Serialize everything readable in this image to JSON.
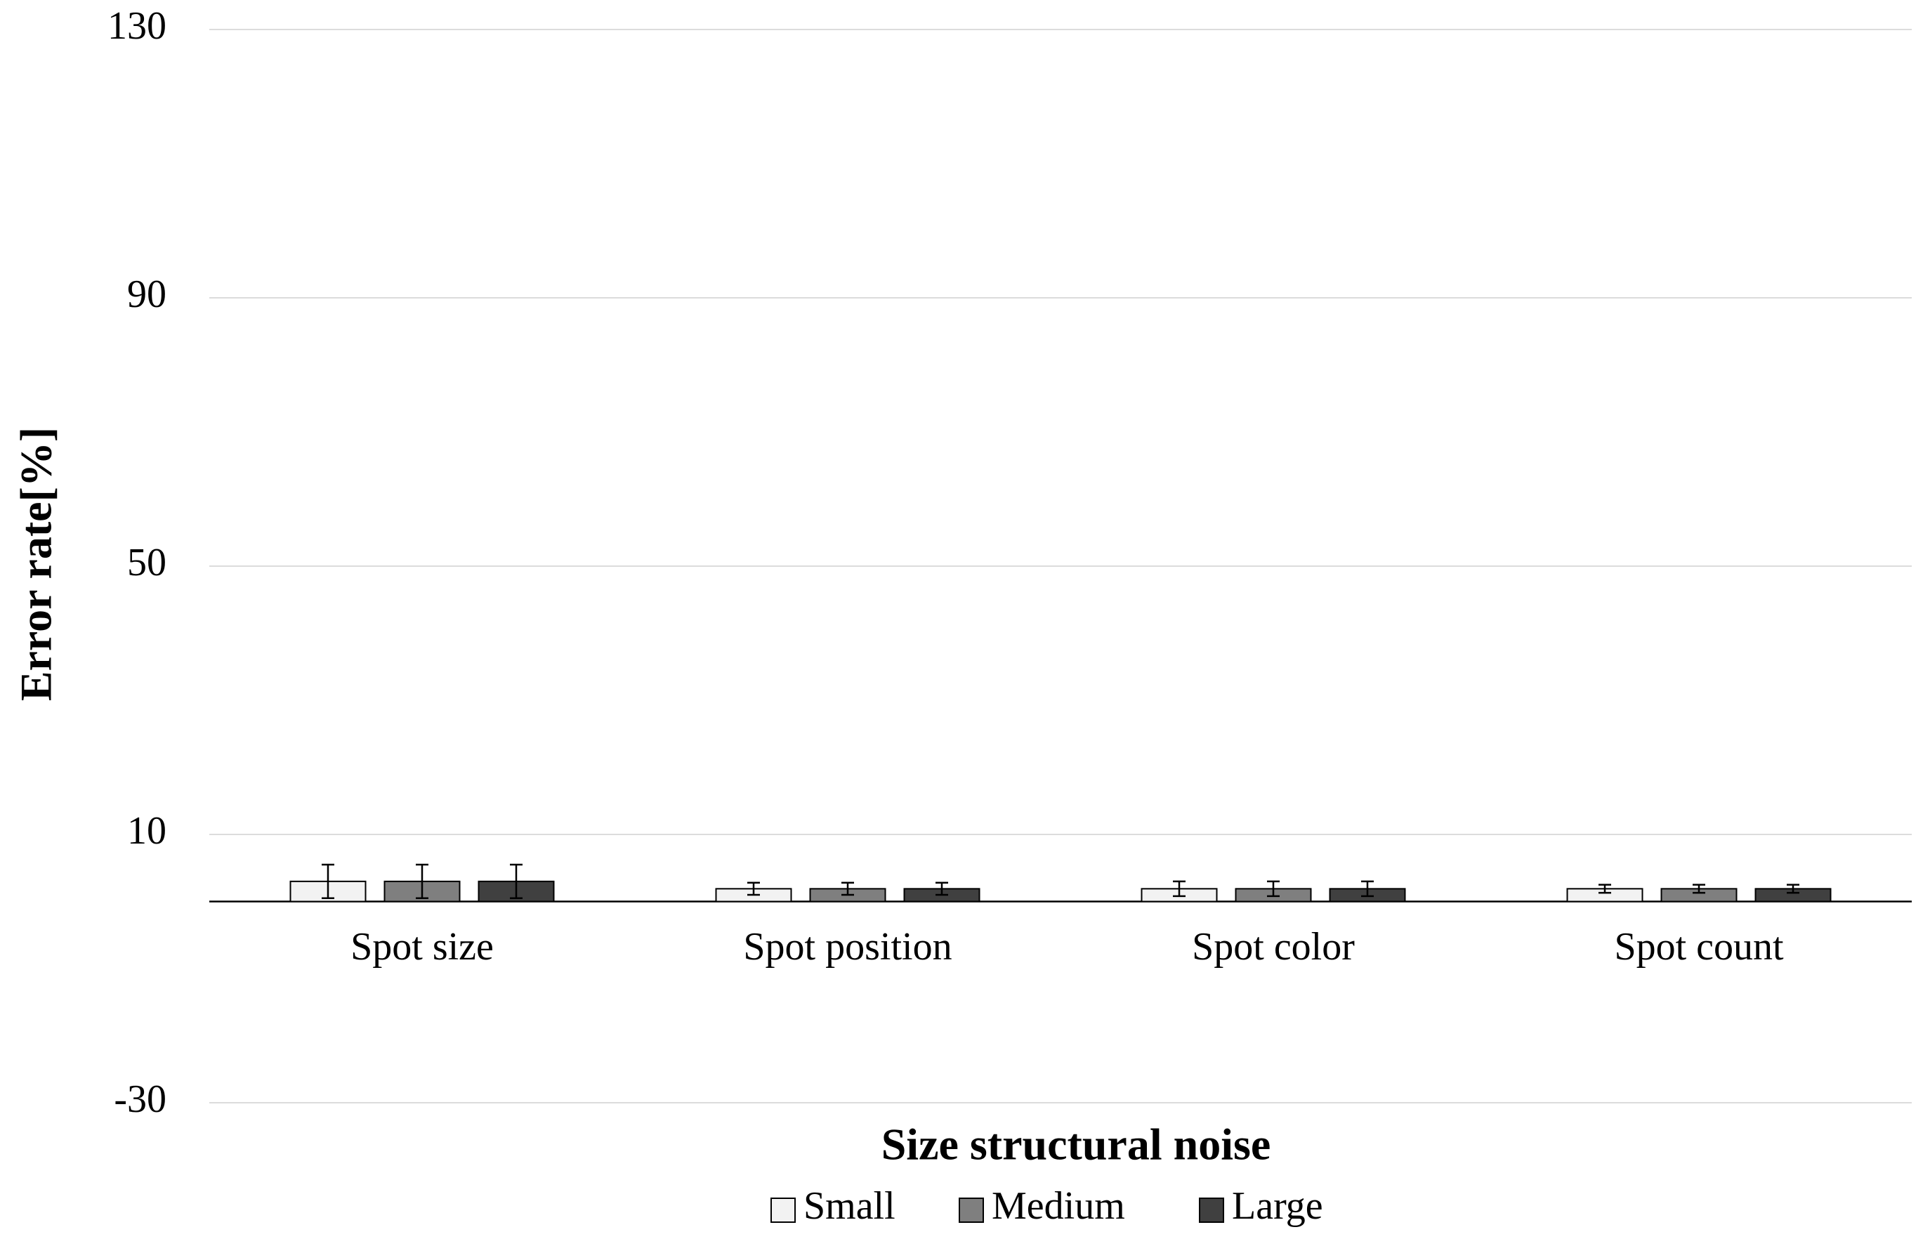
{
  "chart_data": {
    "type": "bar",
    "x_label": "Size structural noise",
    "y_label": "Error rate[%]",
    "categories": [
      "Spot size",
      "Spot position",
      "Spot color",
      "Spot count"
    ],
    "series": [
      {
        "name": "Small",
        "color": "#f2f2f2",
        "values": [
          3.0,
          1.9,
          1.9,
          1.9
        ],
        "errors": [
          2.5,
          0.9,
          1.1,
          0.6
        ]
      },
      {
        "name": "Medium",
        "color": "#7f7f7f",
        "values": [
          3.0,
          1.9,
          1.9,
          1.9
        ],
        "errors": [
          2.5,
          0.9,
          1.1,
          0.6
        ]
      },
      {
        "name": "Large",
        "color": "#404040",
        "values": [
          3.0,
          1.9,
          1.9,
          1.9
        ],
        "errors": [
          2.5,
          0.9,
          1.1,
          0.6
        ]
      }
    ],
    "ylim": [
      -30,
      130
    ],
    "yticks": [
      -30,
      10,
      50,
      90,
      130
    ],
    "grid": true,
    "legend": "bottom"
  }
}
